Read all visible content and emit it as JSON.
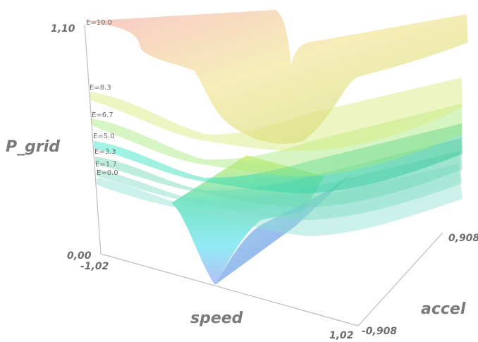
{
  "chart_data": {
    "type": "surface",
    "axes": {
      "x": {
        "label": "speed",
        "min_label": "-1,02",
        "max_label": "1,02",
        "range": [
          -1.02,
          1.02
        ]
      },
      "y": {
        "label": "accel",
        "min_label": "-0,908",
        "max_label": "0,908",
        "range": [
          -0.908,
          0.908
        ]
      },
      "z": {
        "label": "P_grid",
        "min_label": "0,00",
        "max_label": "1,10",
        "range": [
          0.0,
          1.1
        ]
      }
    },
    "surfaces": [
      {
        "label": "E=0.0",
        "E": 0.0,
        "color": "#8fe0d2"
      },
      {
        "label": "E=1.7",
        "E": 1.7,
        "color": "#7fdcc4"
      },
      {
        "label": "E=3.3",
        "E": 3.3,
        "color": "#6ed8b4"
      },
      {
        "label": "E=5.0",
        "E": 5.0,
        "color": "#74e0a4"
      },
      {
        "label": "E=6.7",
        "E": 6.7,
        "color": "#a6e87a"
      },
      {
        "label": "E=8.3",
        "E": 8.3,
        "color": "#d6ec7a"
      },
      {
        "label": "E=10.0",
        "E": 10.0,
        "color": "#ee9a9a"
      }
    ]
  }
}
